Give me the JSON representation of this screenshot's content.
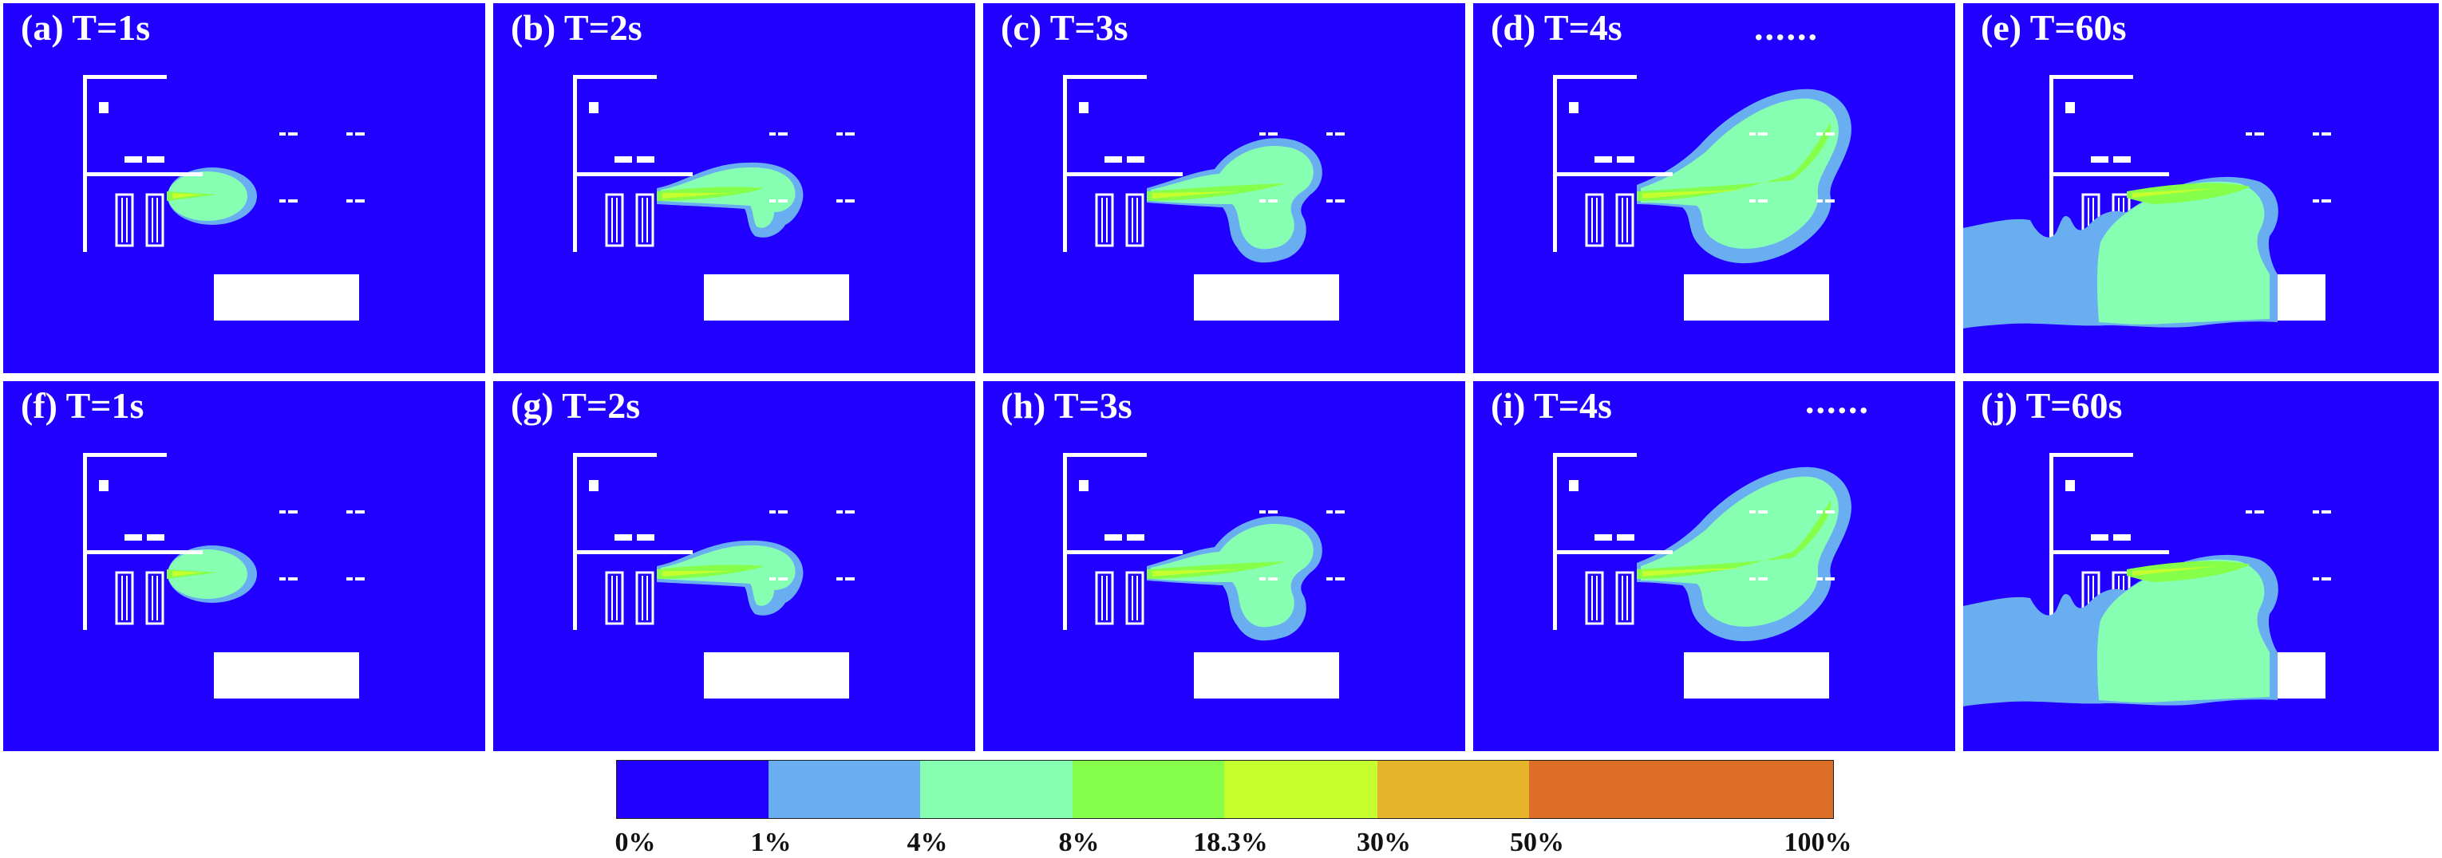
{
  "panels": [
    {
      "label": "(a) T=1s",
      "stage": 1
    },
    {
      "label": "(b) T=2s",
      "stage": 2
    },
    {
      "label": "(c) T=3s",
      "stage": 3
    },
    {
      "label": "(d) T=4s",
      "stage": 4,
      "dots": "......"
    },
    {
      "label": "(e) T=60s",
      "stage": 5
    },
    {
      "label": "(f) T=1s",
      "stage": 1
    },
    {
      "label": "(g) T=2s",
      "stage": 2
    },
    {
      "label": "(h) T=3s",
      "stage": 3
    },
    {
      "label": "(i) T=4s",
      "stage": 4,
      "dots": "......"
    },
    {
      "label": "(j) T=60s",
      "stage": 5
    }
  ],
  "colorbar": {
    "segments": [
      {
        "color": "#2200ff"
      },
      {
        "color": "#6aaef2"
      },
      {
        "color": "#86ffb2"
      },
      {
        "color": "#86ff4a"
      },
      {
        "color": "#c6ff2e"
      },
      {
        "color": "#e6b42a"
      },
      {
        "color": "#dc6e28"
      },
      {
        "color": "#dc6e28"
      }
    ],
    "ticks": [
      "0%",
      "1%",
      "4%",
      "8%",
      "18.3%",
      "30%",
      "50%",
      "100%"
    ]
  },
  "colors": {
    "background": "#2200ff",
    "c1": "#6aaef2",
    "c4": "#86ffb2",
    "c8": "#86ff4a",
    "c18": "#c6ff2e",
    "structure": "#ffffff"
  }
}
